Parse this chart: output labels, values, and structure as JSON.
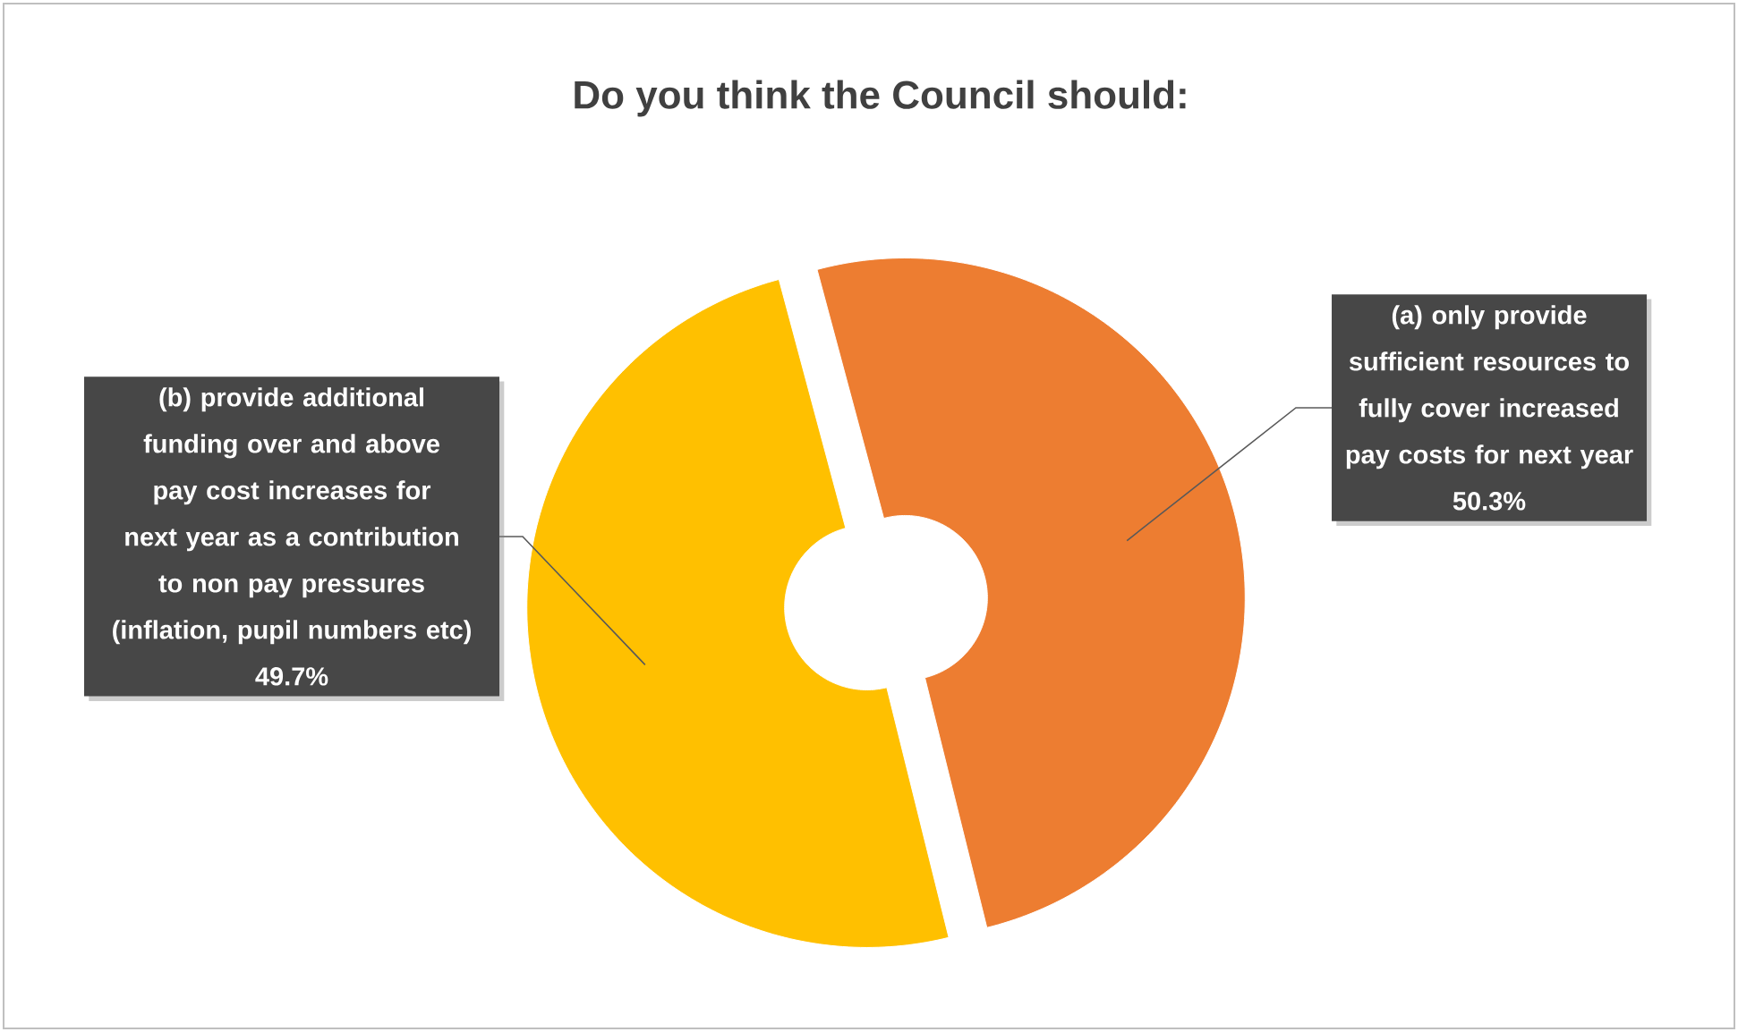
{
  "chart_data": {
    "type": "donut",
    "title": "Do you think the Council should:",
    "categories": [
      "(a) only provide sufficient resources to fully cover increased pay costs for next year",
      "(b) provide additional funding over and above pay cost increases for next year as a contribution to non pay pressures (inflation, pupil numbers etc)"
    ],
    "values": [
      50.3,
      49.7
    ],
    "colors": [
      "#ed7d31",
      "#ffc000"
    ],
    "value_labels": [
      "50.3%",
      "49.7%"
    ]
  }
}
